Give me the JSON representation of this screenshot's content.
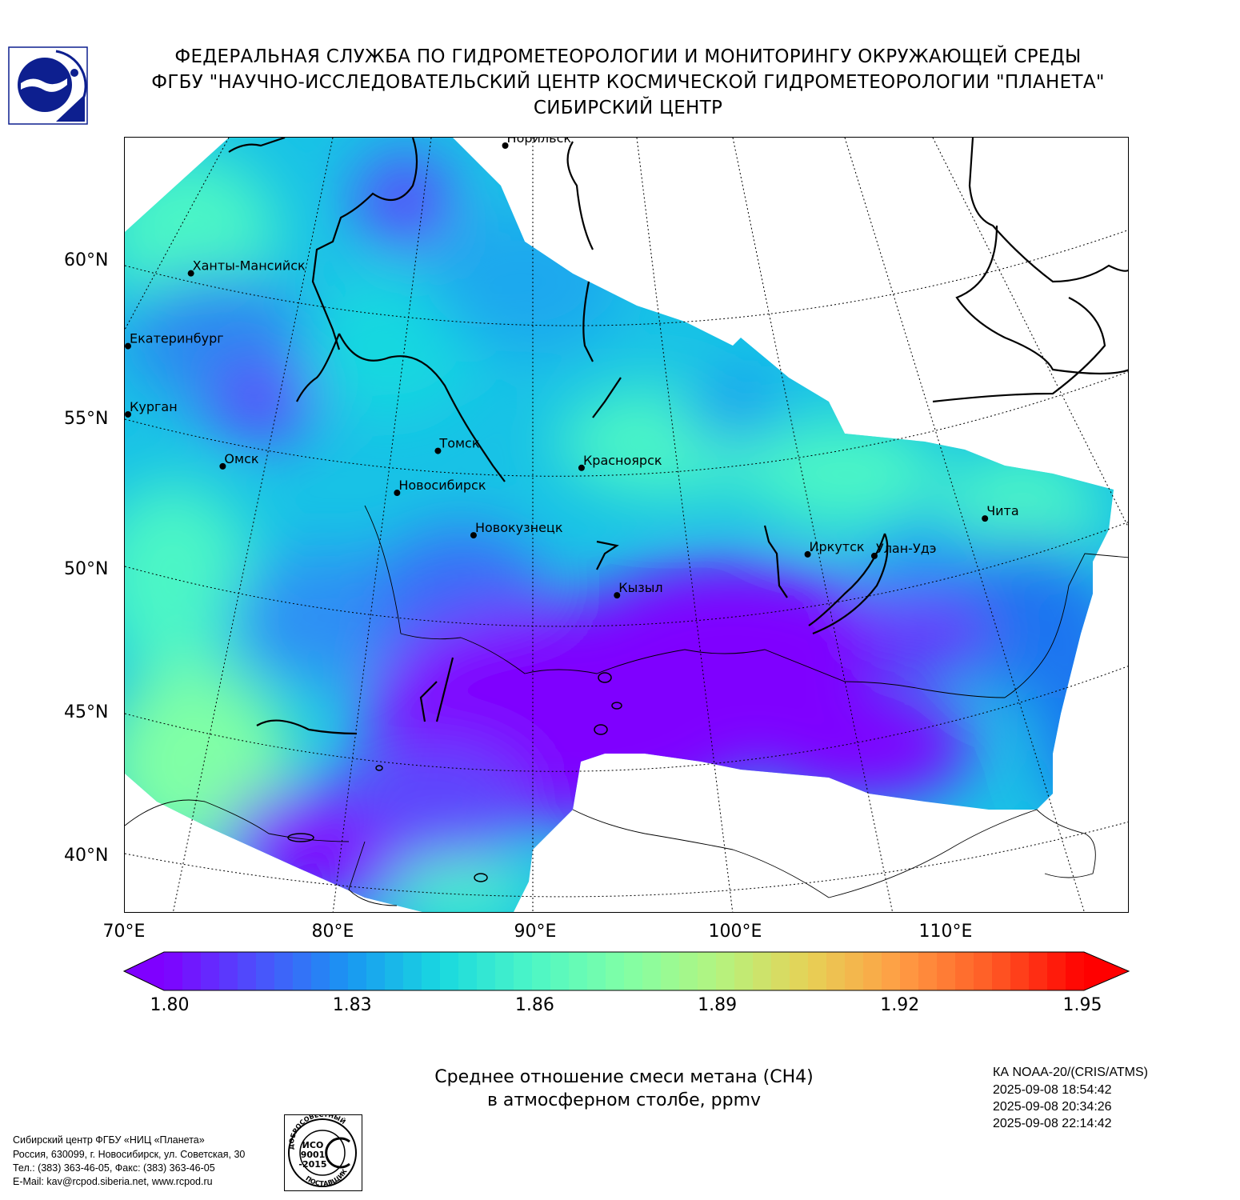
{
  "header": {
    "line1": "ФЕДЕРАЛЬНАЯ СЛУЖБА ПО ГИДРОМЕТЕОРОЛОГИИ И МОНИТОРИНГУ ОКРУЖАЮЩЕЙ СРЕДЫ",
    "line2": "ФГБУ \"НАУЧНО-ИССЛЕДОВАТЕЛЬСКИЙ ЦЕНТР КОСМИЧЕСКОЙ ГИДРОМЕТЕОРОЛОГИИ \"ПЛАНЕТА\"",
    "line3": "СИБИРСКИЙ ЦЕНТР"
  },
  "logo": {
    "icon": "planeta-emblem-icon",
    "color": "#0d1f8f"
  },
  "map": {
    "lat_labels": [
      "60°N",
      "55°N",
      "50°N",
      "45°N",
      "40°N"
    ],
    "lon_labels": [
      "70°E",
      "80°E",
      "90°E",
      "100°E",
      "110°E"
    ],
    "cities": [
      {
        "name": "Норильск",
        "lon": 88.2,
        "lat": 69.35
      },
      {
        "name": "Ханты-Мансийск",
        "lon": 69.0,
        "lat": 61.0
      },
      {
        "name": "Екатеринбург",
        "lon": 60.6,
        "lat": 56.85
      },
      {
        "name": "Курган",
        "lon": 65.3,
        "lat": 55.45
      },
      {
        "name": "Омск",
        "lon": 73.4,
        "lat": 55.0
      },
      {
        "name": "Томск",
        "lon": 84.95,
        "lat": 56.5
      },
      {
        "name": "Новосибирск",
        "lon": 82.9,
        "lat": 55.0
      },
      {
        "name": "Красноярск",
        "lon": 92.9,
        "lat": 56.0
      },
      {
        "name": "Новокузнецк",
        "lon": 87.1,
        "lat": 53.75
      },
      {
        "name": "Кызыл",
        "lon": 94.45,
        "lat": 51.7
      },
      {
        "name": "Иркутск",
        "lon": 104.3,
        "lat": 52.3
      },
      {
        "name": "Улан-Удэ",
        "lon": 107.6,
        "lat": 51.8
      },
      {
        "name": "Чита",
        "lon": 113.5,
        "lat": 52.05
      }
    ]
  },
  "colorbar": {
    "min": 1.8,
    "max": 1.95,
    "ticks": [
      "1.80",
      "1.83",
      "1.86",
      "1.89",
      "1.92",
      "1.95"
    ],
    "colors": [
      "#7f00ff",
      "#4c50fc",
      "#1996f2",
      "#19d8e0",
      "#4cf6c6",
      "#80ffa6",
      "#b3f480",
      "#e6d156",
      "#ff9d44",
      "#ff5a25",
      "#ff0000"
    ],
    "extend": "both"
  },
  "product": {
    "title_line1": "Среднее отношение смеси метана (CH4)",
    "title_line2": "в атмосферном столбе, ppmv"
  },
  "satellite": {
    "name": "КА NOAA-20/(CRIS/ATMS)",
    "passes": [
      "2025-09-08 18:54:42",
      "2025-09-08 20:34:26",
      "2025-09-08 22:14:42"
    ]
  },
  "contacts": {
    "line1": "Сибирский центр ФГБУ «НИЦ «Планета»",
    "line2": "Россия, 630099, г. Новосибирск, ул. Советская, 30",
    "line3": "Тел.: (383) 363-46-05, Факс: (383) 363-46-05",
    "line4": "E-Mail: kav@rcpod.siberia.net, www.rcpod.ru"
  },
  "iso_stamp": {
    "icon": "iso-certificate-stamp-icon",
    "top_text": "ДОБРОСОВЕСТНЫЙ",
    "middle_text": [
      "ИСО",
      "9001",
      "-2015"
    ],
    "bottom_text": "ПОСТАВЩИК"
  }
}
